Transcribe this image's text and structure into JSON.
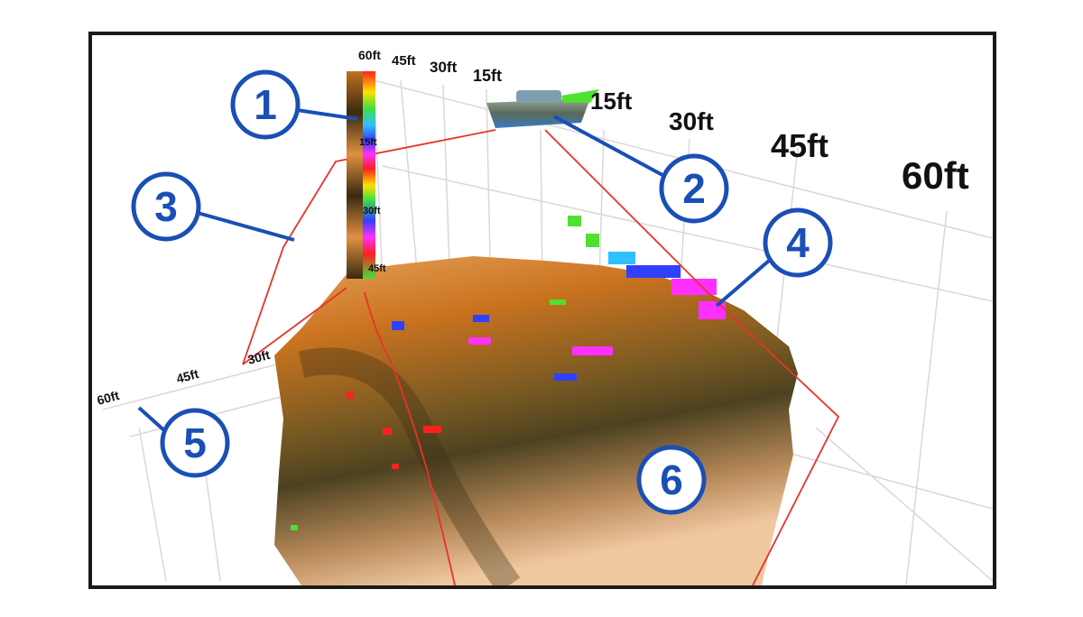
{
  "scale_top": [
    "60ft",
    "45ft",
    "30ft",
    "15ft"
  ],
  "scale_right": [
    "15ft",
    "30ft",
    "45ft",
    "60ft"
  ],
  "scale_left": [
    "30ft",
    "45ft",
    "60ft"
  ],
  "color_bar_labels": [
    "15ft",
    "30ft",
    "45ft"
  ],
  "callouts": [
    "1",
    "2",
    "3",
    "4",
    "5",
    "6"
  ],
  "colors": {
    "callout": "#1a4fb5",
    "cone": "#e8322b",
    "terrain_light": "#f2c08a",
    "terrain_mid": "#d7822c",
    "terrain_dark": "#4a3a1a"
  }
}
